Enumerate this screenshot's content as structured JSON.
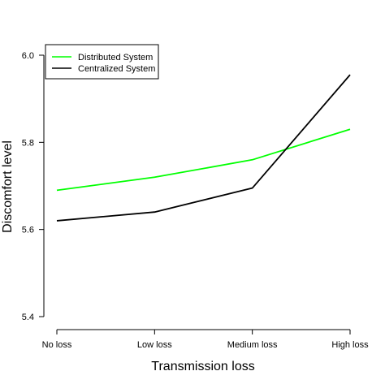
{
  "chart_data": {
    "type": "line",
    "categories": [
      "No loss",
      "Low loss",
      "Medium loss",
      "High loss"
    ],
    "series": [
      {
        "name": "Distributed System",
        "color": "#00ff00",
        "values": [
          5.69,
          5.72,
          5.76,
          5.83
        ]
      },
      {
        "name": "Centralized System",
        "color": "#000000",
        "values": [
          5.62,
          5.64,
          5.695,
          5.955
        ]
      }
    ],
    "xlabel": "Transmission loss",
    "ylabel": "Discomfort level",
    "ylim": [
      5.4,
      6.0
    ],
    "yticks": [
      "5.4",
      "5.6",
      "5.8",
      "6.0"
    ],
    "grid": false,
    "legend_position": "top-left"
  }
}
